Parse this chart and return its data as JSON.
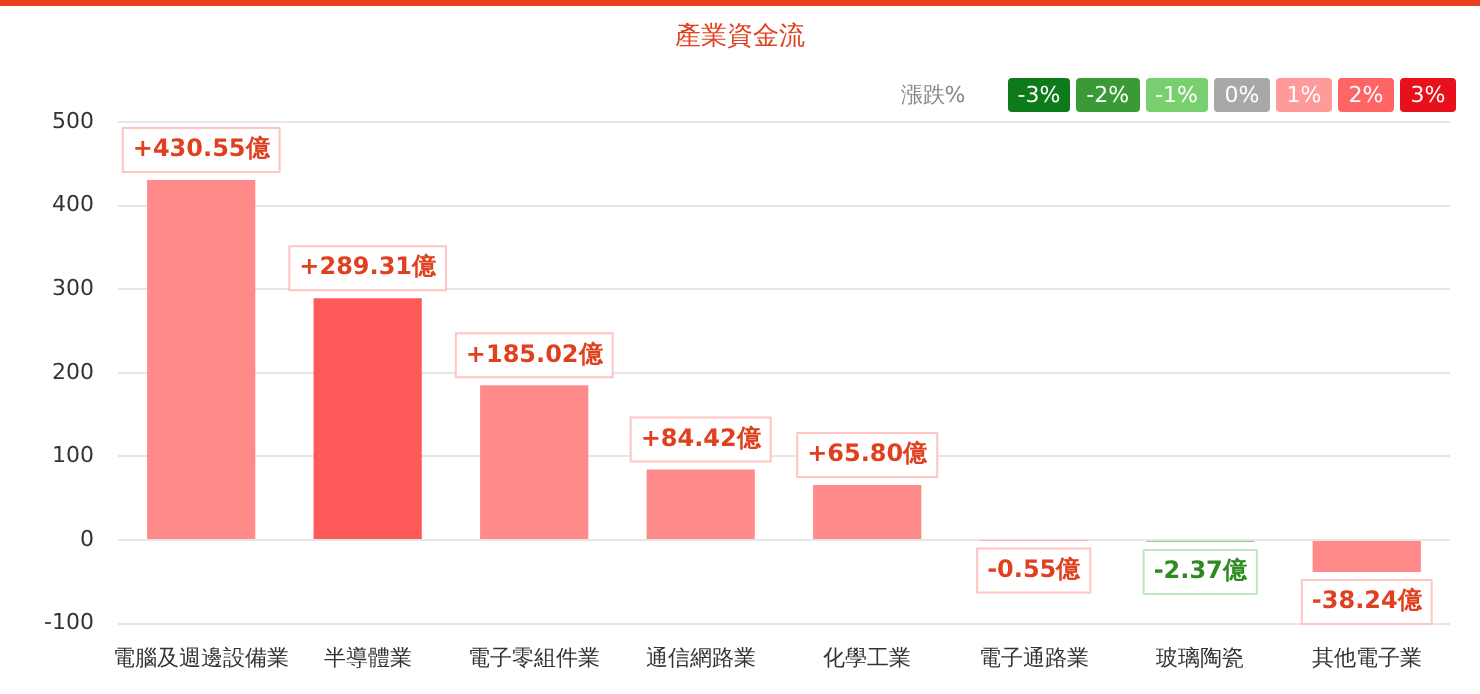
{
  "chart_data": {
    "type": "bar",
    "title": "產業資金流",
    "categories": [
      "電腦及週邊設備業",
      "半導體業",
      "電子零組件業",
      "通信網路業",
      "化學工業",
      "電子通路業",
      "玻璃陶瓷",
      "其他電子業"
    ],
    "values": [
      430.55,
      289.31,
      185.02,
      84.42,
      65.8,
      -0.55,
      -2.37,
      -38.24
    ],
    "value_labels": [
      "+430.55億",
      "+289.31億",
      "+185.02億",
      "+84.42億",
      "+65.80億",
      "-0.55億",
      "-2.37億",
      "-38.24億"
    ],
    "colors": [
      "#ff8a8a",
      "#ff5a5a",
      "#ff8a8a",
      "#ff8a8a",
      "#ff8a8a",
      "#ff8a8a",
      "#7dd87d",
      "#ff8a8a"
    ],
    "ylim": [
      -100,
      500
    ],
    "yticks": [
      -100,
      0,
      100,
      200,
      300,
      400,
      500
    ],
    "grid": "y",
    "annotations": [
      "漲跌%",
      "-3%",
      "-2%",
      "-1%",
      "0%",
      "1%",
      "2%",
      "3%"
    ]
  }
}
